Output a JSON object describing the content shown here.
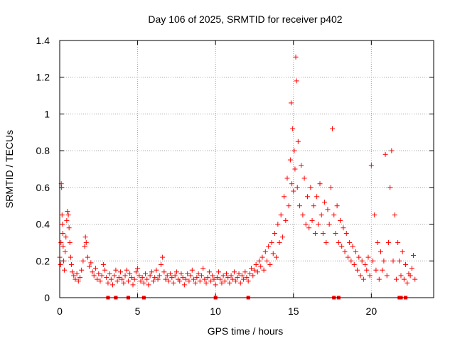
{
  "chart_data": {
    "type": "scatter",
    "title": "Day 106 of 2025, SRMTID for receiver p402",
    "xlabel": "GPS time / hours",
    "ylabel": "SRMTID / TECUs",
    "xlim": [
      0,
      24
    ],
    "ylim": [
      0,
      1.4
    ],
    "xticks": [
      0,
      5,
      10,
      15,
      20
    ],
    "xtick_labels": [
      "0",
      "5",
      "10",
      "15",
      "20"
    ],
    "yticks": [
      0,
      0.2,
      0.4,
      0.6,
      0.8,
      1,
      1.2,
      1.4
    ],
    "ytick_labels": [
      "0",
      "0.2",
      "0.4",
      "0.6",
      "0.8",
      "1",
      "1.2",
      "1.4"
    ],
    "grid": true,
    "marker": "+",
    "marker_color": "#ff0000",
    "series": [
      {
        "name": "SRMTID",
        "points": [
          [
            0.0,
            0.22
          ],
          [
            0.05,
            0.18
          ],
          [
            0.08,
            0.3
          ],
          [
            0.1,
            0.62
          ],
          [
            0.12,
            0.6
          ],
          [
            0.15,
            0.45
          ],
          [
            0.18,
            0.4
          ],
          [
            0.2,
            0.35
          ],
          [
            0.22,
            0.28
          ],
          [
            0.25,
            0.2
          ],
          [
            0.3,
            0.15
          ],
          [
            0.35,
            0.25
          ],
          [
            0.4,
            0.33
          ],
          [
            0.45,
            0.42
          ],
          [
            0.5,
            0.47
          ],
          [
            0.55,
            0.45
          ],
          [
            0.6,
            0.38
          ],
          [
            0.65,
            0.3
          ],
          [
            0.7,
            0.22
          ],
          [
            0.75,
            0.18
          ],
          [
            0.8,
            0.14
          ],
          [
            0.9,
            0.12
          ],
          [
            1.0,
            0.1
          ],
          [
            1.1,
            0.13
          ],
          [
            1.2,
            0.09
          ],
          [
            1.3,
            0.11
          ],
          [
            1.4,
            0.15
          ],
          [
            1.5,
            0.2
          ],
          [
            1.6,
            0.28
          ],
          [
            1.65,
            0.33
          ],
          [
            1.7,
            0.3
          ],
          [
            1.8,
            0.22
          ],
          [
            1.9,
            0.17
          ],
          [
            2.0,
            0.19
          ],
          [
            2.1,
            0.14
          ],
          [
            2.2,
            0.12
          ],
          [
            2.3,
            0.16
          ],
          [
            2.4,
            0.1
          ],
          [
            2.5,
            0.13
          ],
          [
            2.6,
            0.09
          ],
          [
            2.7,
            0.12
          ],
          [
            2.8,
            0.18
          ],
          [
            2.9,
            0.15
          ],
          [
            3.0,
            0.11
          ],
          [
            3.1,
            0.08
          ],
          [
            3.2,
            0.13
          ],
          [
            3.3,
            0.1
          ],
          [
            3.4,
            0.07
          ],
          [
            3.5,
            0.12
          ],
          [
            3.6,
            0.15
          ],
          [
            3.7,
            0.09
          ],
          [
            3.8,
            0.11
          ],
          [
            3.9,
            0.14
          ],
          [
            4.0,
            0.1
          ],
          [
            4.1,
            0.08
          ],
          [
            4.2,
            0.12
          ],
          [
            4.3,
            0.15
          ],
          [
            4.4,
            0.09
          ],
          [
            4.5,
            0.13
          ],
          [
            4.6,
            0.11
          ],
          [
            4.7,
            0.07
          ],
          [
            4.8,
            0.1
          ],
          [
            4.9,
            0.14
          ],
          [
            5.0,
            0.16
          ],
          [
            5.1,
            0.12
          ],
          [
            5.2,
            0.09
          ],
          [
            5.3,
            0.11
          ],
          [
            5.4,
            0.08
          ],
          [
            5.5,
            0.13
          ],
          [
            5.6,
            0.1
          ],
          [
            5.7,
            0.07
          ],
          [
            5.8,
            0.12
          ],
          [
            5.9,
            0.14
          ],
          [
            6.0,
            0.09
          ],
          [
            6.1,
            0.11
          ],
          [
            6.2,
            0.15
          ],
          [
            6.3,
            0.1
          ],
          [
            6.4,
            0.12
          ],
          [
            6.5,
            0.18
          ],
          [
            6.6,
            0.22
          ],
          [
            6.7,
            0.14
          ],
          [
            6.8,
            0.1
          ],
          [
            6.9,
            0.12
          ],
          [
            7.0,
            0.09
          ],
          [
            7.1,
            0.13
          ],
          [
            7.2,
            0.11
          ],
          [
            7.3,
            0.08
          ],
          [
            7.4,
            0.12
          ],
          [
            7.5,
            0.14
          ],
          [
            7.6,
            0.1
          ],
          [
            7.7,
            0.09
          ],
          [
            7.8,
            0.13
          ],
          [
            7.9,
            0.11
          ],
          [
            8.0,
            0.07
          ],
          [
            8.1,
            0.1
          ],
          [
            8.2,
            0.13
          ],
          [
            8.3,
            0.09
          ],
          [
            8.4,
            0.12
          ],
          [
            8.5,
            0.15
          ],
          [
            8.6,
            0.1
          ],
          [
            8.7,
            0.08
          ],
          [
            8.8,
            0.11
          ],
          [
            8.9,
            0.13
          ],
          [
            9.0,
            0.09
          ],
          [
            9.1,
            0.12
          ],
          [
            9.2,
            0.16
          ],
          [
            9.3,
            0.1
          ],
          [
            9.4,
            0.08
          ],
          [
            9.5,
            0.11
          ],
          [
            9.6,
            0.14
          ],
          [
            9.7,
            0.09
          ],
          [
            9.8,
            0.12
          ],
          [
            9.9,
            0.1
          ],
          [
            10.0,
            0.07
          ],
          [
            10.1,
            0.11
          ],
          [
            10.2,
            0.14
          ],
          [
            10.3,
            0.1
          ],
          [
            10.4,
            0.08
          ],
          [
            10.5,
            0.12
          ],
          [
            10.6,
            0.09
          ],
          [
            10.7,
            0.13
          ],
          [
            10.8,
            0.11
          ],
          [
            10.9,
            0.08
          ],
          [
            11.0,
            0.12
          ],
          [
            11.1,
            0.1
          ],
          [
            11.2,
            0.14
          ],
          [
            11.3,
            0.09
          ],
          [
            11.4,
            0.11
          ],
          [
            11.5,
            0.13
          ],
          [
            11.6,
            0.08
          ],
          [
            11.7,
            0.12
          ],
          [
            11.8,
            0.1
          ],
          [
            11.9,
            0.14
          ],
          [
            12.0,
            0.11
          ],
          [
            12.1,
            0.09
          ],
          [
            12.2,
            0.13
          ],
          [
            12.3,
            0.16
          ],
          [
            12.4,
            0.12
          ],
          [
            12.5,
            0.15
          ],
          [
            12.6,
            0.18
          ],
          [
            12.7,
            0.14
          ],
          [
            12.8,
            0.2
          ],
          [
            12.9,
            0.17
          ],
          [
            13.0,
            0.22
          ],
          [
            13.1,
            0.15
          ],
          [
            13.2,
            0.25
          ],
          [
            13.3,
            0.2
          ],
          [
            13.4,
            0.28
          ],
          [
            13.5,
            0.18
          ],
          [
            13.6,
            0.3
          ],
          [
            13.7,
            0.24
          ],
          [
            13.8,
            0.35
          ],
          [
            13.9,
            0.22
          ],
          [
            14.0,
            0.4
          ],
          [
            14.1,
            0.3
          ],
          [
            14.2,
            0.45
          ],
          [
            14.3,
            0.33
          ],
          [
            14.4,
            0.55
          ],
          [
            14.5,
            0.42
          ],
          [
            14.6,
            0.65
          ],
          [
            14.7,
            0.5
          ],
          [
            14.8,
            0.75
          ],
          [
            14.85,
            1.06
          ],
          [
            14.9,
            0.62
          ],
          [
            14.95,
            0.92
          ],
          [
            15.0,
            0.58
          ],
          [
            15.05,
            0.8
          ],
          [
            15.1,
            0.7
          ],
          [
            15.15,
            1.31
          ],
          [
            15.2,
            1.18
          ],
          [
            15.25,
            0.6
          ],
          [
            15.3,
            0.85
          ],
          [
            15.4,
            0.5
          ],
          [
            15.5,
            0.72
          ],
          [
            15.6,
            0.45
          ],
          [
            15.7,
            0.65
          ],
          [
            15.8,
            0.4
          ],
          [
            15.9,
            0.55
          ],
          [
            16.0,
            0.38
          ],
          [
            16.1,
            0.6
          ],
          [
            16.2,
            0.42
          ],
          [
            16.3,
            0.5
          ],
          [
            16.4,
            0.35
          ],
          [
            16.5,
            0.55
          ],
          [
            16.6,
            0.4
          ],
          [
            16.7,
            0.62
          ],
          [
            16.8,
            0.45
          ],
          [
            16.9,
            0.35
          ],
          [
            17.0,
            0.52
          ],
          [
            17.1,
            0.3
          ],
          [
            17.2,
            0.48
          ],
          [
            17.3,
            0.4
          ],
          [
            17.4,
            0.6
          ],
          [
            17.5,
            0.92
          ],
          [
            17.6,
            0.45
          ],
          [
            17.7,
            0.35
          ],
          [
            17.8,
            0.5
          ],
          [
            17.9,
            0.3
          ],
          [
            18.0,
            0.42
          ],
          [
            18.1,
            0.28
          ],
          [
            18.2,
            0.38
          ],
          [
            18.3,
            0.25
          ],
          [
            18.4,
            0.35
          ],
          [
            18.5,
            0.22
          ],
          [
            18.6,
            0.3
          ],
          [
            18.7,
            0.2
          ],
          [
            18.8,
            0.28
          ],
          [
            18.9,
            0.18
          ],
          [
            19.0,
            0.25
          ],
          [
            19.1,
            0.15
          ],
          [
            19.2,
            0.22
          ],
          [
            19.3,
            0.12
          ],
          [
            19.4,
            0.2
          ],
          [
            19.5,
            0.1
          ],
          [
            19.6,
            0.18
          ],
          [
            19.7,
            0.15
          ],
          [
            19.8,
            0.22
          ],
          [
            19.9,
            0.12
          ],
          [
            20.0,
            0.72
          ],
          [
            20.1,
            0.2
          ],
          [
            20.2,
            0.45
          ],
          [
            20.3,
            0.15
          ],
          [
            20.4,
            0.3
          ],
          [
            20.5,
            0.1
          ],
          [
            20.6,
            0.25
          ],
          [
            20.7,
            0.15
          ],
          [
            20.8,
            0.2
          ],
          [
            20.9,
            0.78
          ],
          [
            21.0,
            0.12
          ],
          [
            21.1,
            0.3
          ],
          [
            21.2,
            0.6
          ],
          [
            21.3,
            0.8
          ],
          [
            21.4,
            0.2
          ],
          [
            21.5,
            0.45
          ],
          [
            21.6,
            0.1
          ],
          [
            21.7,
            0.3
          ],
          [
            21.8,
            0.2
          ],
          [
            21.9,
            0.12
          ],
          [
            22.0,
            0.25
          ],
          [
            22.1,
            0.1
          ],
          [
            22.2,
            0.18
          ],
          [
            22.3,
            0.08
          ],
          [
            22.4,
            0.13
          ],
          [
            22.5,
            0.12
          ],
          [
            22.6,
            0.16
          ],
          [
            22.7,
            0.23
          ],
          [
            22.8,
            0.1
          ]
        ]
      }
    ],
    "zero_markers_x": [
      3.1,
      3.6,
      4.4,
      5.4,
      10.0,
      12.1,
      17.6,
      17.9,
      21.8,
      21.9,
      22.2
    ]
  }
}
